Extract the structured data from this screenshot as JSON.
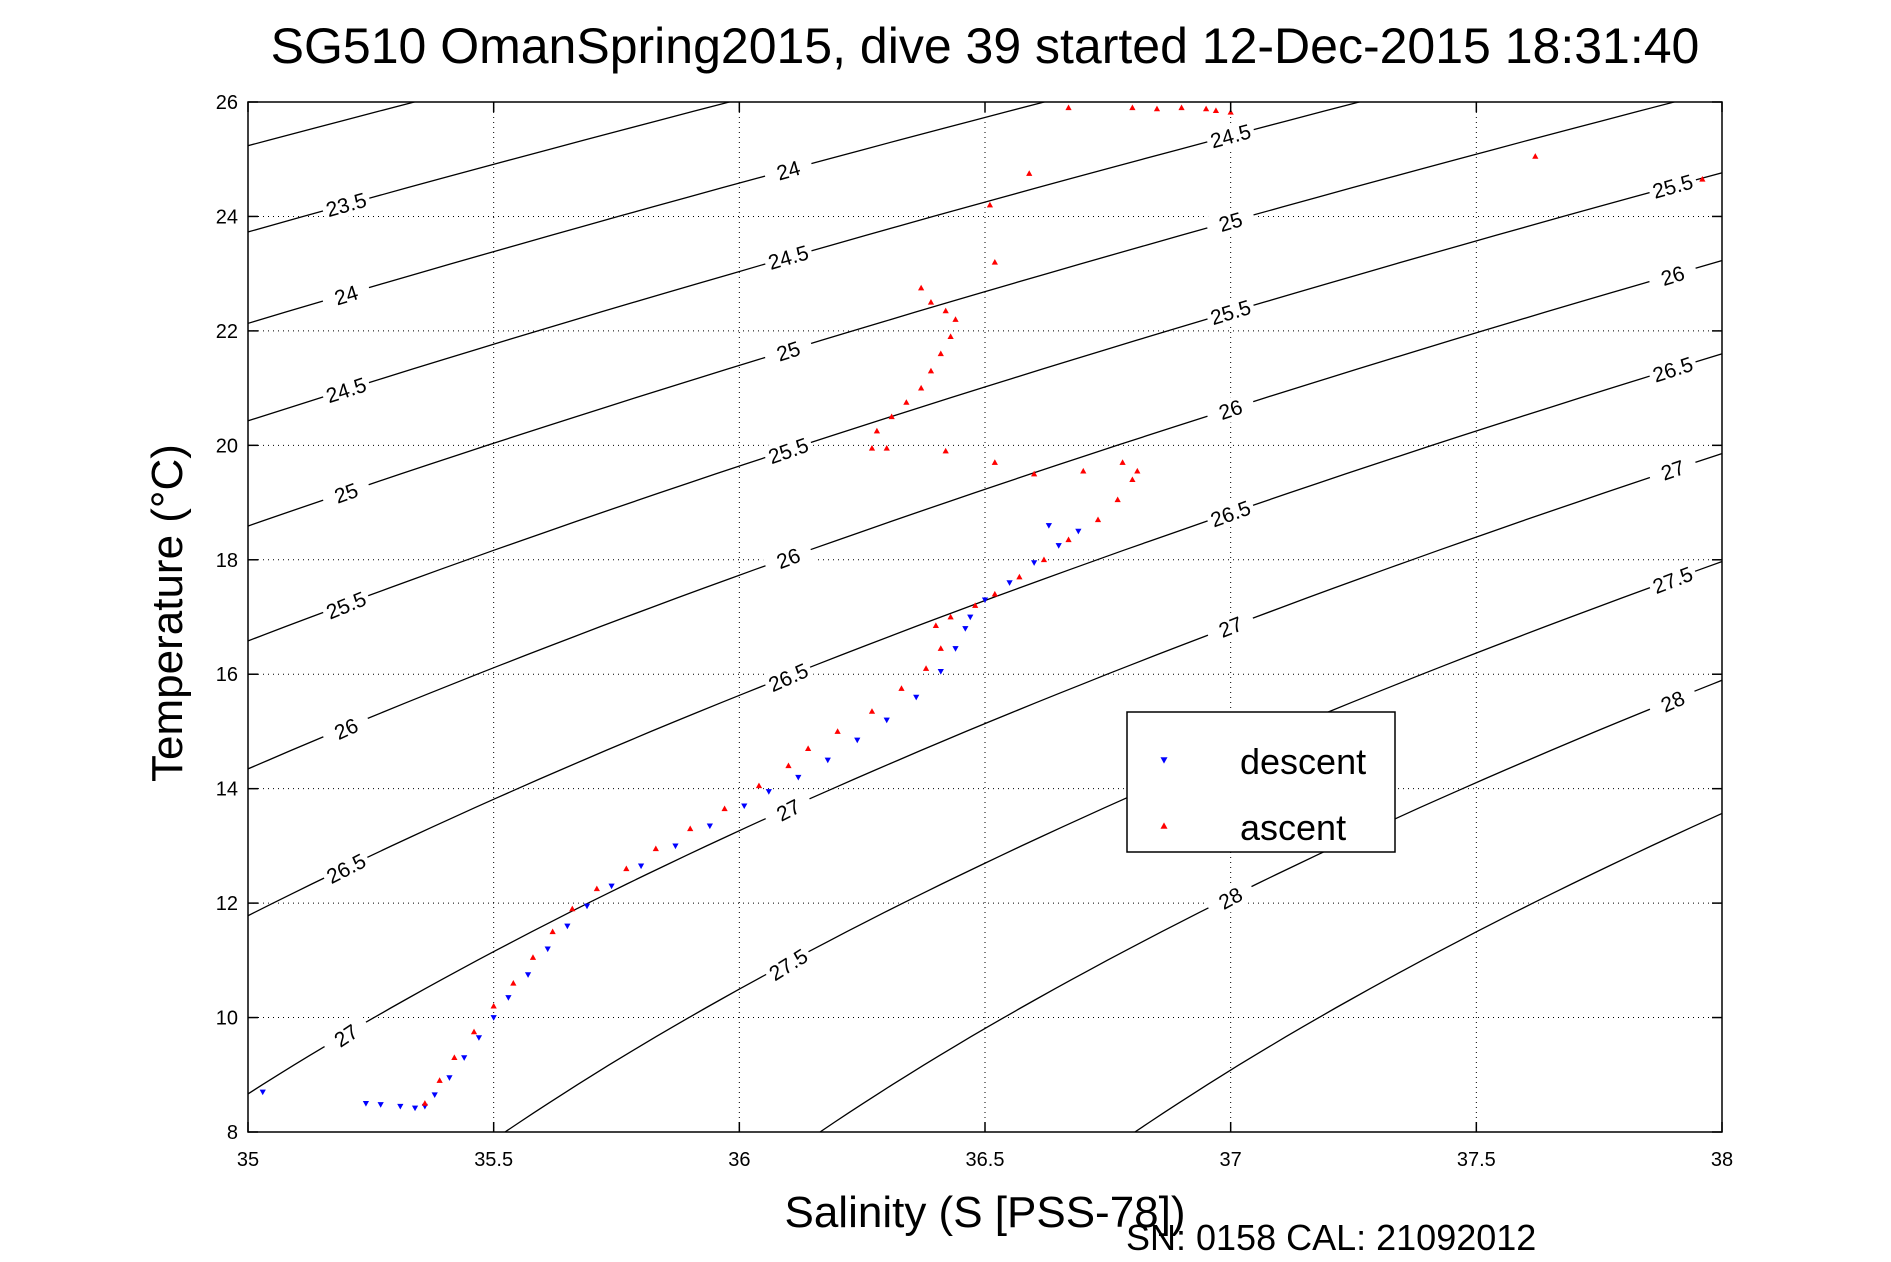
{
  "chart_data": {
    "type": "scatter",
    "title": "SG510 OmanSpring2015, dive 39 started 12-Dec-2015 18:31:40",
    "xlabel": "Salinity (S [PSS-78])",
    "ylabel": "Temperature (°C)",
    "xlim": [
      35,
      38
    ],
    "ylim": [
      8,
      26
    ],
    "xticks": [
      "35",
      "35.5",
      "36",
      "36.5",
      "37",
      "37.5",
      "38"
    ],
    "yticks": [
      "8",
      "10",
      "12",
      "14",
      "16",
      "18",
      "20",
      "22",
      "24",
      "26"
    ],
    "grid": true,
    "legend_position": "right",
    "footer": "SN: 0158  CAL: 21092012",
    "contours": {
      "label_values": [
        23.5,
        24,
        24.5,
        25,
        25.5,
        26,
        26.5,
        27,
        27.5,
        28
      ],
      "label_texts": [
        "23.5",
        "24",
        "24.5",
        "25",
        "25.5",
        "26",
        "26.5",
        "27",
        "27.5",
        "28"
      ],
      "color": "#000000"
    },
    "series": [
      {
        "name": "descent",
        "color": "#0000ff",
        "marker": "triangle-down",
        "points": [
          [
            35.03,
            8.7
          ],
          [
            35.24,
            8.5
          ],
          [
            35.27,
            8.48
          ],
          [
            35.31,
            8.45
          ],
          [
            35.34,
            8.42
          ],
          [
            35.36,
            8.45
          ],
          [
            35.38,
            8.65
          ],
          [
            35.41,
            8.95
          ],
          [
            35.44,
            9.3
          ],
          [
            35.47,
            9.65
          ],
          [
            35.5,
            10.0
          ],
          [
            35.53,
            10.35
          ],
          [
            35.57,
            10.75
          ],
          [
            35.61,
            11.2
          ],
          [
            35.65,
            11.6
          ],
          [
            35.69,
            11.95
          ],
          [
            35.74,
            12.3
          ],
          [
            35.8,
            12.65
          ],
          [
            35.87,
            13.0
          ],
          [
            35.94,
            13.35
          ],
          [
            36.01,
            13.7
          ],
          [
            36.06,
            13.95
          ],
          [
            36.12,
            14.2
          ],
          [
            36.18,
            14.5
          ],
          [
            36.24,
            14.85
          ],
          [
            36.3,
            15.2
          ],
          [
            36.36,
            15.6
          ],
          [
            36.41,
            16.05
          ],
          [
            36.44,
            16.45
          ],
          [
            36.46,
            16.8
          ],
          [
            36.47,
            17.0
          ],
          [
            36.5,
            17.3
          ],
          [
            36.55,
            17.6
          ],
          [
            36.6,
            17.95
          ],
          [
            36.65,
            18.25
          ],
          [
            36.69,
            18.5
          ],
          [
            36.63,
            18.6
          ]
        ]
      },
      {
        "name": "ascent",
        "color": "#ff0000",
        "marker": "triangle-up",
        "points": [
          [
            35.36,
            8.5
          ],
          [
            35.39,
            8.9
          ],
          [
            35.42,
            9.3
          ],
          [
            35.46,
            9.75
          ],
          [
            35.5,
            10.2
          ],
          [
            35.54,
            10.6
          ],
          [
            35.58,
            11.05
          ],
          [
            35.62,
            11.5
          ],
          [
            35.66,
            11.9
          ],
          [
            35.71,
            12.25
          ],
          [
            35.77,
            12.6
          ],
          [
            35.83,
            12.95
          ],
          [
            35.9,
            13.3
          ],
          [
            35.97,
            13.65
          ],
          [
            36.04,
            14.05
          ],
          [
            36.1,
            14.4
          ],
          [
            36.14,
            14.7
          ],
          [
            36.2,
            15.0
          ],
          [
            36.27,
            15.35
          ],
          [
            36.33,
            15.75
          ],
          [
            36.38,
            16.1
          ],
          [
            36.41,
            16.45
          ],
          [
            36.4,
            16.85
          ],
          [
            36.43,
            17.0
          ],
          [
            36.48,
            17.2
          ],
          [
            36.52,
            17.4
          ],
          [
            36.57,
            17.7
          ],
          [
            36.62,
            18.0
          ],
          [
            36.67,
            18.35
          ],
          [
            36.73,
            18.7
          ],
          [
            36.77,
            19.05
          ],
          [
            36.8,
            19.4
          ],
          [
            36.81,
            19.55
          ],
          [
            36.78,
            19.7
          ],
          [
            36.7,
            19.55
          ],
          [
            36.6,
            19.5
          ],
          [
            36.52,
            19.7
          ],
          [
            36.42,
            19.9
          ],
          [
            36.3,
            19.95
          ],
          [
            36.27,
            19.95
          ],
          [
            36.28,
            20.25
          ],
          [
            36.31,
            20.5
          ],
          [
            36.34,
            20.75
          ],
          [
            36.37,
            21.0
          ],
          [
            36.39,
            21.3
          ],
          [
            36.41,
            21.6
          ],
          [
            36.43,
            21.9
          ],
          [
            36.44,
            22.2
          ],
          [
            36.42,
            22.35
          ],
          [
            36.39,
            22.5
          ],
          [
            36.37,
            22.75
          ],
          [
            36.52,
            23.2
          ],
          [
            36.51,
            24.2
          ],
          [
            36.59,
            24.75
          ],
          [
            36.67,
            25.9
          ],
          [
            36.8,
            25.9
          ],
          [
            36.85,
            25.88
          ],
          [
            36.9,
            25.9
          ],
          [
            36.95,
            25.88
          ],
          [
            36.97,
            25.85
          ],
          [
            37.0,
            25.82
          ],
          [
            37.62,
            25.05
          ],
          [
            37.96,
            24.65
          ]
        ]
      }
    ]
  }
}
